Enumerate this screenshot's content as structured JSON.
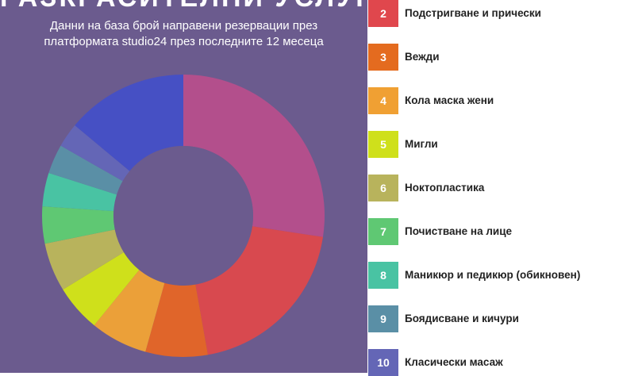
{
  "title": "РАЗКРАСИТЕЛНИ УСЛУГИ",
  "subtitle_lines": [
    "Данни на база брой направени резервации през",
    "платформата studio24 през последните 12 месеца"
  ],
  "legend": [
    {
      "num": "2",
      "label": "Подстригване и прически",
      "color": "#e0474d"
    },
    {
      "num": "3",
      "label": "Вежди",
      "color": "#e46b1f"
    },
    {
      "num": "4",
      "label": "Кола маска жени",
      "color": "#f0a033"
    },
    {
      "num": "5",
      "label": "Мигли",
      "color": "#cfe01b"
    },
    {
      "num": "6",
      "label": "Ноктопластика",
      "color": "#b8b35c"
    },
    {
      "num": "7",
      "label": "Почистване на лице",
      "color": "#5fc873"
    },
    {
      "num": "8",
      "label": "Маникюр и педикюр (обикновен)",
      "color": "#49c3a3"
    },
    {
      "num": "9",
      "label": "Боядисване и кичури",
      "color": "#5a8fa6"
    },
    {
      "num": "10",
      "label": "Класически масаж",
      "color": "#6466b6"
    }
  ],
  "chart_data": {
    "type": "pie",
    "donut": true,
    "slices": [
      {
        "label": "",
        "value": 28.5,
        "color": "#b34f8c"
      },
      {
        "label": "Подстригване и прически",
        "value": 20.6,
        "color": "#d8494f"
      },
      {
        "label": "Вежди",
        "value": 7.4,
        "color": "#e0652a"
      },
      {
        "label": "Кола маска жени",
        "value": 6.8,
        "color": "#eba039"
      },
      {
        "label": "Мигли",
        "value": 5.6,
        "color": "#cfe01b"
      },
      {
        "label": "Ноктопластика",
        "value": 5.8,
        "color": "#b8b35c"
      },
      {
        "label": "Почистване на лице",
        "value": 4.4,
        "color": "#5fc873"
      },
      {
        "label": "Маникюр и педикюр (обикновен)",
        "value": 4.0,
        "color": "#49c3a3"
      },
      {
        "label": "Боядисване и кичури",
        "value": 3.5,
        "color": "#5a8fa6"
      },
      {
        "label": "Класически масаж",
        "value": 2.9,
        "color": "#6466b6"
      },
      {
        "label": "",
        "value": 14.5,
        "color": "#4650c4"
      }
    ]
  }
}
